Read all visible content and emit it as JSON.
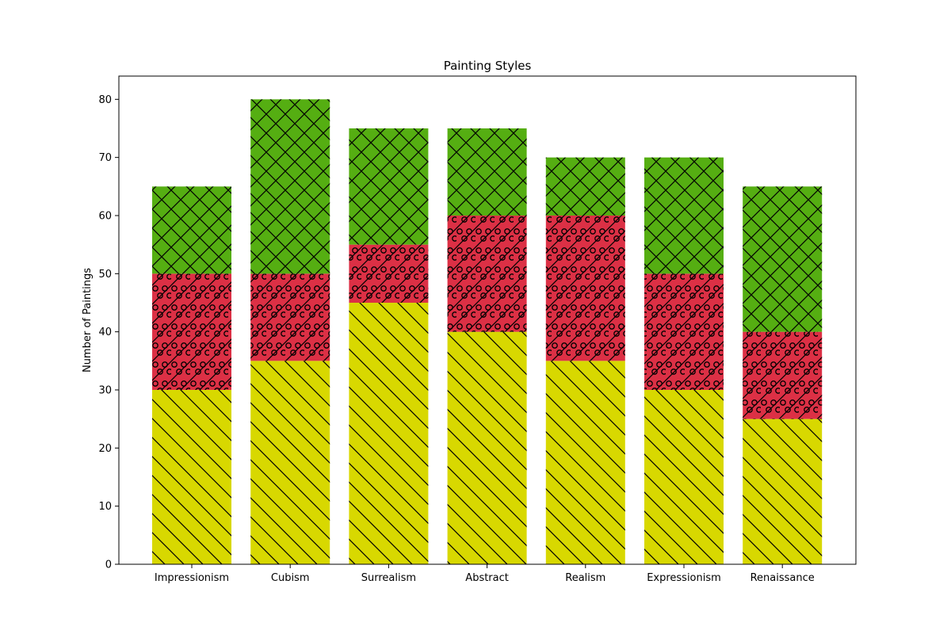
{
  "chart_data": {
    "type": "bar",
    "stacked": true,
    "title": "Painting Styles",
    "xlabel": "",
    "ylabel": "Number of Paintings",
    "ylim": [
      0,
      84
    ],
    "yticks": [
      0,
      10,
      20,
      30,
      40,
      50,
      60,
      70,
      80
    ],
    "categories": [
      "Impressionism",
      "Cubism",
      "Surrealism",
      "Abstract",
      "Realism",
      "Expressionism",
      "Renaissance"
    ],
    "series": [
      {
        "values": [
          30,
          35,
          45,
          40,
          35,
          30,
          25
        ],
        "color": "#d8d800",
        "hatch": "backslash"
      },
      {
        "values": [
          20,
          15,
          10,
          20,
          25,
          20,
          15
        ],
        "color": "#dc3045",
        "hatch": "slash-circles"
      },
      {
        "values": [
          15,
          30,
          20,
          15,
          10,
          20,
          25
        ],
        "color": "#55ae12",
        "hatch": "crosshatch"
      }
    ],
    "grid": false,
    "legend": "none"
  }
}
